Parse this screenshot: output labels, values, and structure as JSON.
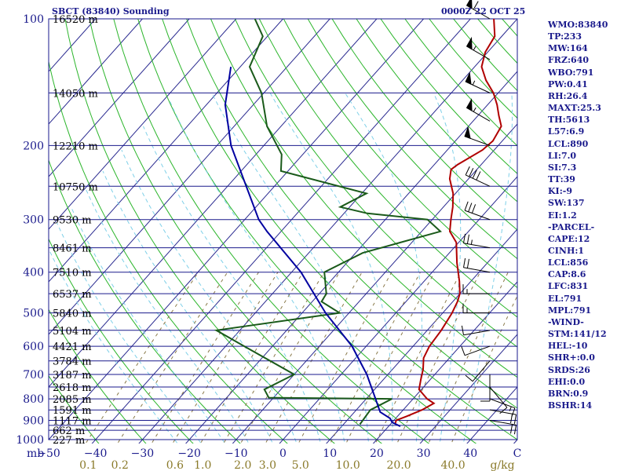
{
  "header": {
    "station": "SBCT (83840) Sounding",
    "time": "0000Z 22 OCT 25"
  },
  "indices": [
    "WMO:83840",
    "TP:233",
    "MW:164",
    "FRZ:640",
    "WBO:791",
    "PW:0.41",
    "RH:26.4",
    "MAXT:25.3",
    "TH:5613",
    "L57:6.9",
    "LCL:890",
    "LI:7.0",
    "SI:7.3",
    "TT:39",
    "KI:-9",
    "SW:137",
    "EI:1.2",
    "-PARCEL-",
    "CAPE:12",
    "CINH:1",
    "LCL:856",
    "CAP:8.6",
    "LFC:831",
    "EL:791",
    "MPL:791",
    "-WIND-",
    "STM:141/12",
    "HEL:-10",
    "SHR+:0.0",
    "SRDS:26",
    "EHI:0.0",
    "BRN:0.9",
    "BSHR:14"
  ],
  "colors": {
    "isobar": "#1a1a8c",
    "isotherm": "#2a2a90",
    "dry_adiabat": "#2bb52b",
    "moist_adiabat": "#7fd0e8",
    "mixing_ratio": "#8a7a4a",
    "temperature": "#b00000",
    "dewpoint": "#1a5a1a",
    "parcel": "#0000a0",
    "axis_text": "#1a1a8c",
    "mixing_text": "#8a7a2a"
  },
  "chart_data": {
    "type": "line",
    "title": "SBCT (83840) Sounding",
    "subtitle": "0000Z 22 OCT 25",
    "x_axis": {
      "label": "C",
      "unit_prefix": "mb",
      "range": [
        -50,
        50
      ],
      "ticks": [
        "-50",
        "-40",
        "-30",
        "-20",
        "-10",
        "0",
        "10",
        "20",
        "30",
        "40"
      ],
      "skew_deg_per_100_to_1000mb": 80
    },
    "y_axis": {
      "scale": "log",
      "range": [
        1000,
        100
      ],
      "ticks": [
        "100",
        "200",
        "300",
        "400",
        "500",
        "600",
        "700",
        "800",
        "900",
        "1000"
      ],
      "isobars": [
        100,
        150,
        200,
        250,
        300,
        350,
        400,
        450,
        500,
        550,
        600,
        650,
        700,
        750,
        800,
        850,
        900,
        925,
        950,
        1000
      ]
    },
    "height_labels": [
      {
        "p": 100,
        "label": "16520 m"
      },
      {
        "p": 150,
        "label": "14050 m"
      },
      {
        "p": 200,
        "label": "12210 m"
      },
      {
        "p": 250,
        "label": "10750 m"
      },
      {
        "p": 300,
        "label": "9530 m"
      },
      {
        "p": 350,
        "label": "8461 m"
      },
      {
        "p": 400,
        "label": "7510 m"
      },
      {
        "p": 450,
        "label": "6537 m"
      },
      {
        "p": 500,
        "label": "5840 m"
      },
      {
        "p": 550,
        "label": "5104 m"
      },
      {
        "p": 600,
        "label": "4421 m"
      },
      {
        "p": 650,
        "label": "3784 m"
      },
      {
        "p": 700,
        "label": "3187 m"
      },
      {
        "p": 750,
        "label": "2618 m"
      },
      {
        "p": 800,
        "label": "2085 m"
      },
      {
        "p": 850,
        "label": "1591 m"
      },
      {
        "p": 900,
        "label": "1117 m"
      },
      {
        "p": 950,
        "label": "662 m"
      },
      {
        "p": 1000,
        "label": "227 m"
      }
    ],
    "mixing_ratio_labels": [
      {
        "value": 0.1,
        "label": "0.1"
      },
      {
        "value": 0.2,
        "label": "0.2"
      },
      {
        "value": 0.6,
        "label": "0.6"
      },
      {
        "value": 1.0,
        "label": "1.0"
      },
      {
        "value": 2.0,
        "label": "2.0"
      },
      {
        "value": 3.0,
        "label": "3.0"
      },
      {
        "value": 5.0,
        "label": "5.0"
      },
      {
        "value": 10.0,
        "label": "10.0"
      },
      {
        "value": 20.0,
        "label": "20.0"
      },
      {
        "value": 40.0,
        "label": "40.0"
      }
    ],
    "mixing_ratio_unit": "g/kg",
    "series": [
      {
        "name": "Temperature",
        "points": [
          [
            920,
            21.0
          ],
          [
            900,
            20.5
          ],
          [
            880,
            22.0
          ],
          [
            850,
            24.0
          ],
          [
            820,
            25.3
          ],
          [
            800,
            23.0
          ],
          [
            760,
            19.5
          ],
          [
            720,
            18.0
          ],
          [
            680,
            16.5
          ],
          [
            640,
            14.5
          ],
          [
            600,
            13.5
          ],
          [
            550,
            13.0
          ],
          [
            500,
            12.0
          ],
          [
            470,
            11.0
          ],
          [
            450,
            10.0
          ],
          [
            420,
            7.5
          ],
          [
            380,
            3.5
          ],
          [
            340,
            -0.5
          ],
          [
            320,
            -4.0
          ],
          [
            300,
            -6.0
          ],
          [
            280,
            -8.0
          ],
          [
            260,
            -10.5
          ],
          [
            240,
            -14.0
          ],
          [
            228,
            -15.5
          ],
          [
            222,
            -15.0
          ],
          [
            205,
            -12.5
          ],
          [
            195,
            -12.0
          ],
          [
            180,
            -13.0
          ],
          [
            170,
            -15.5
          ],
          [
            160,
            -18.0
          ],
          [
            150,
            -21.0
          ],
          [
            140,
            -25.0
          ],
          [
            130,
            -28.5
          ],
          [
            120,
            -30.5
          ],
          [
            110,
            -31.5
          ],
          [
            100,
            -35.0
          ]
        ]
      },
      {
        "name": "Dewpoint",
        "points": [
          [
            920,
            13.5
          ],
          [
            850,
            13.0
          ],
          [
            800,
            15.5
          ],
          [
            795,
            -11.0
          ],
          [
            760,
            -13.5
          ],
          [
            700,
            -10.0
          ],
          [
            600,
            -26.0
          ],
          [
            550,
            -35.0
          ],
          [
            500,
            -12.0
          ],
          [
            470,
            -18.0
          ],
          [
            450,
            -18.5
          ],
          [
            400,
            -23.0
          ],
          [
            360,
            -18.5
          ],
          [
            320,
            -6.0
          ],
          [
            300,
            -11.0
          ],
          [
            290,
            -25.0
          ],
          [
            280,
            -32.0
          ],
          [
            260,
            -29.0
          ],
          [
            230,
            -51.5
          ],
          [
            210,
            -54.5
          ],
          [
            180,
            -63.0
          ],
          [
            150,
            -70.5
          ],
          [
            130,
            -78.0
          ],
          [
            110,
            -81.0
          ],
          [
            100,
            -86.0
          ]
        ]
      },
      {
        "name": "Parcel",
        "points": [
          [
            930,
            22.5
          ],
          [
            910,
            20.0
          ],
          [
            890,
            18.8
          ],
          [
            860,
            15.5
          ],
          [
            800,
            12.0
          ],
          [
            700,
            5.5
          ],
          [
            600,
            -3.0
          ],
          [
            500,
            -15.0
          ],
          [
            400,
            -28.0
          ],
          [
            320,
            -43.0
          ],
          [
            300,
            -47.0
          ],
          [
            250,
            -56.0
          ],
          [
            200,
            -67.0
          ],
          [
            160,
            -76.0
          ],
          [
            130,
            -82.0
          ]
        ]
      }
    ],
    "winds": [
      {
        "p": 100,
        "dir": 300,
        "spd": 60
      },
      {
        "p": 125,
        "dir": 300,
        "spd": 55
      },
      {
        "p": 150,
        "dir": 295,
        "spd": 55
      },
      {
        "p": 175,
        "dir": 300,
        "spd": 55
      },
      {
        "p": 200,
        "dir": 290,
        "spd": 50
      },
      {
        "p": 250,
        "dir": 295,
        "spd": 40
      },
      {
        "p": 300,
        "dir": 290,
        "spd": 30
      },
      {
        "p": 350,
        "dir": 280,
        "spd": 25
      },
      {
        "p": 400,
        "dir": 280,
        "spd": 20
      },
      {
        "p": 450,
        "dir": 270,
        "spd": 15
      },
      {
        "p": 500,
        "dir": 270,
        "spd": 15
      },
      {
        "p": 550,
        "dir": 260,
        "spd": 10
      },
      {
        "p": 600,
        "dir": 250,
        "spd": 10
      },
      {
        "p": 650,
        "dir": 220,
        "spd": 10
      },
      {
        "p": 700,
        "dir": 180,
        "spd": 10
      },
      {
        "p": 750,
        "dir": 140,
        "spd": 10
      },
      {
        "p": 800,
        "dir": 110,
        "spd": 15
      },
      {
        "p": 850,
        "dir": 100,
        "spd": 20
      },
      {
        "p": 900,
        "dir": 100,
        "spd": 20
      }
    ],
    "grid": true
  }
}
